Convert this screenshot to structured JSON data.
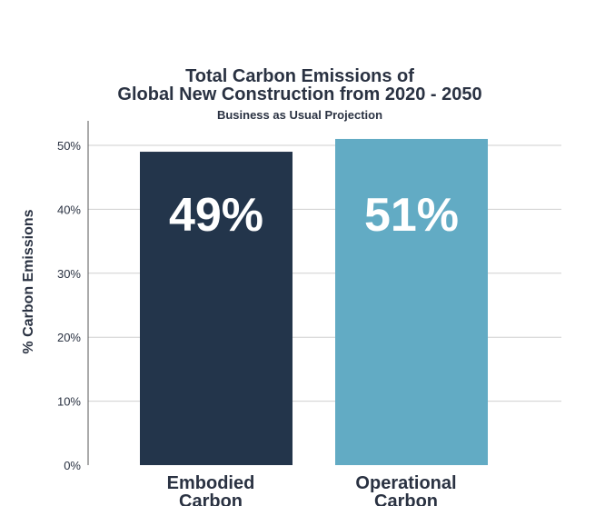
{
  "chart_data": {
    "type": "bar",
    "title_lines": [
      "Total Carbon Emissions of",
      "Global New Construction from 2020 - 2050"
    ],
    "subtitle": "Business as Usual Projection",
    "ylabel": "% Carbon Emissions",
    "xlabel": "",
    "ylim": [
      0,
      50
    ],
    "yticks": [
      0,
      10,
      20,
      30,
      40,
      50
    ],
    "ytick_labels": [
      "0%",
      "10%",
      "20%",
      "30%",
      "40%",
      "50%"
    ],
    "categories": [
      [
        "Embodied",
        "Carbon"
      ],
      [
        "Operational",
        "Carbon"
      ]
    ],
    "values": [
      49,
      51
    ],
    "data_labels": [
      "49%",
      "51%"
    ],
    "colors": [
      "#23354b",
      "#62abc4"
    ],
    "grid": true
  }
}
